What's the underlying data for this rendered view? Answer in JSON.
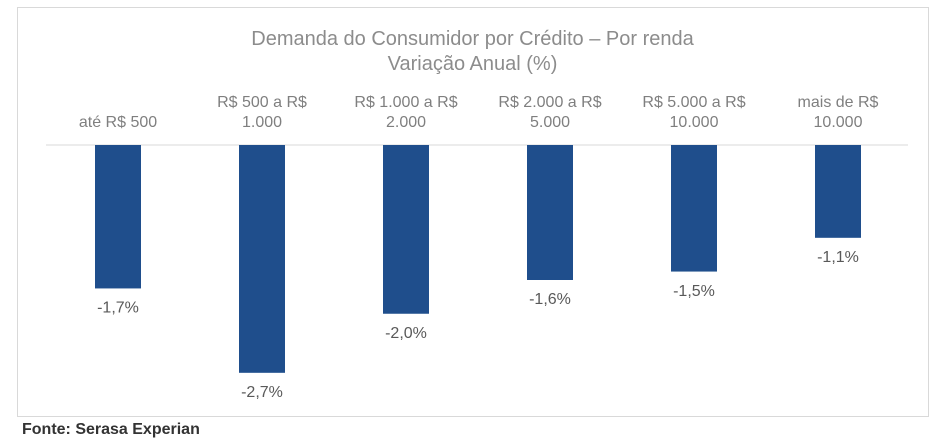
{
  "chart_data": {
    "type": "bar",
    "title": "Demanda do Consumidor por Crédito – Por renda",
    "subtitle": "Variação Anual (%)",
    "categories": [
      "até R$ 500",
      "R$ 500 a R$ 1.000",
      "R$ 1.000 a R$ 2.000",
      "R$ 2.000 a R$ 5.000",
      "R$ 5.000 a R$ 10.000",
      "mais de R$ 10.000"
    ],
    "values": [
      -1.7,
      -2.7,
      -2.0,
      -1.6,
      -1.5,
      -1.1
    ],
    "value_labels": [
      "-1,7%",
      "-2,7%",
      "-2,0%",
      "-1,6%",
      "-1,5%",
      "-1,1%"
    ],
    "color": "#1f4e8c",
    "ylim": [
      -3.2,
      0
    ],
    "source": "Fonte: Serasa Experian"
  }
}
